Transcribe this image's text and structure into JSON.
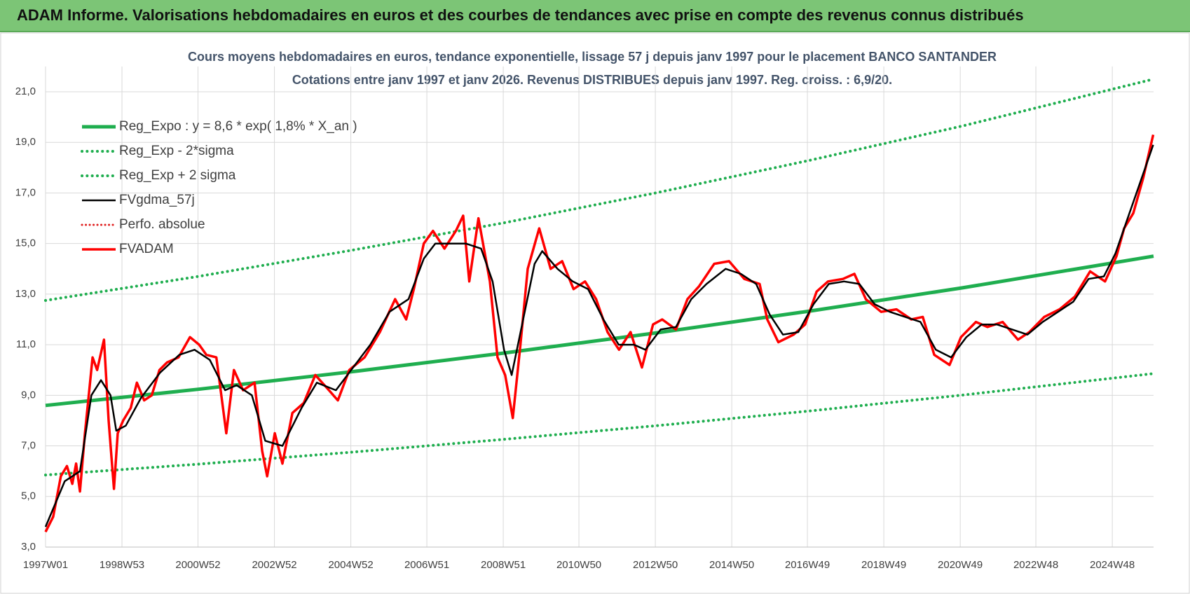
{
  "header": {
    "title": "ADAM Informe. Valorisations hebdomadaires en euros et des courbes de tendances avec prise en compte des revenus connus distribués"
  },
  "chart_data": {
    "type": "line",
    "title": "Cours moyens hebdomadaires en euros, tendance exponentielle, lissage 57 j depuis janv 1997  pour le placement BANCO SANTANDER",
    "subtitle": "Cotations entre janv 1997 et janv 2026. Revenus DISTRIBUES depuis janv 1997.  Reg. croiss. : 6,9/20.",
    "xlim": [
      1997,
      2026
    ],
    "xticks": [
      {
        "value": 1997,
        "label": "1997W01"
      },
      {
        "value": 1999,
        "label": "1998W53"
      },
      {
        "value": 2000.99,
        "label": "2000W52"
      },
      {
        "value": 2002.99,
        "label": "2002W52"
      },
      {
        "value": 2004.99,
        "label": "2004W52"
      },
      {
        "value": 2006.98,
        "label": "2006W51"
      },
      {
        "value": 2008.98,
        "label": "2008W51"
      },
      {
        "value": 2010.96,
        "label": "2010W50"
      },
      {
        "value": 2012.96,
        "label": "2012W50"
      },
      {
        "value": 2014.96,
        "label": "2014W50"
      },
      {
        "value": 2016.94,
        "label": "2016W49"
      },
      {
        "value": 2018.94,
        "label": "2018W49"
      },
      {
        "value": 2020.94,
        "label": "2020W49"
      },
      {
        "value": 2022.92,
        "label": "2022W48"
      },
      {
        "value": 2024.92,
        "label": "2024W48"
      }
    ],
    "ylim": [
      3,
      22
    ],
    "yticks": [
      {
        "value": 3,
        "label": "3,0"
      },
      {
        "value": 5,
        "label": "5,0"
      },
      {
        "value": 7,
        "label": "7,0"
      },
      {
        "value": 9,
        "label": "9,0"
      },
      {
        "value": 11,
        "label": "11,0"
      },
      {
        "value": 13,
        "label": "13,0"
      },
      {
        "value": 15,
        "label": "15,0"
      },
      {
        "value": 17,
        "label": "17,0"
      },
      {
        "value": 19,
        "label": "19,0"
      },
      {
        "value": 21,
        "label": "21,0"
      }
    ],
    "grid": true,
    "legend": "upper left",
    "series": [
      {
        "name": "Reg_Expo : y = 8,6 * exp( 1,8% *  X_an )",
        "color": "#1fae4f",
        "style": "solid",
        "width": 5,
        "x": [
          1997,
          2001,
          2005,
          2009,
          2013,
          2017,
          2021,
          2026
        ],
        "values": [
          8.6,
          9.24,
          9.93,
          10.67,
          11.47,
          12.33,
          13.25,
          14.5
        ]
      },
      {
        "name": "Reg_Exp - 2*sigma",
        "color": "#1fae4f",
        "style": "dotted",
        "width": 4,
        "x": [
          1997,
          2001,
          2005,
          2009,
          2013,
          2017,
          2021,
          2026
        ],
        "values": [
          5.85,
          6.28,
          6.75,
          7.26,
          7.8,
          8.38,
          9.01,
          9.86
        ]
      },
      {
        "name": "Reg_Exp + 2 sigma",
        "color": "#1fae4f",
        "style": "dotted",
        "width": 4,
        "x": [
          1997,
          2001,
          2005,
          2009,
          2013,
          2017,
          2021,
          2026
        ],
        "values": [
          12.75,
          13.7,
          14.73,
          15.82,
          17.01,
          18.29,
          19.65,
          21.5
        ]
      },
      {
        "name": "FVgdma_57j",
        "color": "#000000",
        "style": "solid",
        "width": 2.5,
        "x": [
          1997,
          1997.5,
          1997.9,
          1998.2,
          1998.45,
          1998.7,
          1998.85,
          1999.1,
          1999.5,
          2000,
          2000.5,
          2000.9,
          2001.3,
          2001.7,
          2002,
          2002.4,
          2002.75,
          2003.2,
          2003.7,
          2004.1,
          2004.6,
          2005,
          2005.5,
          2006,
          2006.5,
          2006.9,
          2007.2,
          2007.6,
          2008,
          2008.4,
          2008.7,
          2009,
          2009.2,
          2009.5,
          2009.8,
          2010,
          2010.4,
          2010.8,
          2011.2,
          2011.6,
          2012,
          2012.4,
          2012.7,
          2013.1,
          2013.5,
          2013.9,
          2014.3,
          2014.8,
          2015.2,
          2015.6,
          2015.95,
          2016.3,
          2016.7,
          2017.1,
          2017.5,
          2017.9,
          2018.3,
          2018.7,
          2019.1,
          2019.5,
          2019.9,
          2020.3,
          2020.7,
          2021.1,
          2021.5,
          2021.9,
          2022.3,
          2022.7,
          2023.1,
          2023.5,
          2023.9,
          2024.3,
          2024.7,
          2025,
          2025.3,
          2025.6,
          2025.99
        ],
        "values": [
          3.8,
          5.6,
          6.0,
          9.0,
          9.6,
          9.0,
          7.6,
          7.8,
          8.9,
          9.9,
          10.6,
          10.8,
          10.4,
          9.2,
          9.4,
          9.0,
          7.2,
          7.0,
          8.5,
          9.5,
          9.2,
          10.0,
          11.0,
          12.3,
          12.8,
          14.4,
          15.0,
          15.0,
          15.0,
          14.8,
          13.5,
          10.8,
          9.8,
          12.0,
          14.2,
          14.7,
          14.0,
          13.5,
          13.2,
          12.0,
          11.0,
          11.0,
          10.8,
          11.6,
          11.7,
          12.8,
          13.4,
          14.0,
          13.8,
          13.4,
          12.2,
          11.4,
          11.5,
          12.6,
          13.4,
          13.5,
          13.4,
          12.6,
          12.3,
          12.1,
          11.9,
          10.8,
          10.5,
          11.3,
          11.8,
          11.8,
          11.6,
          11.4,
          11.9,
          12.3,
          12.7,
          13.6,
          13.7,
          14.6,
          15.9,
          17.2,
          18.9
        ]
      },
      {
        "name": "Perfo. absolue",
        "color": "#e02020",
        "style": "dotted",
        "width": 3
      },
      {
        "name": "FVADAM",
        "color": "#ff0000",
        "style": "solid",
        "width": 3.5,
        "x": [
          1997,
          1997.2,
          1997.4,
          1997.56,
          1997.7,
          1997.8,
          1997.9,
          1998.03,
          1998.23,
          1998.35,
          1998.53,
          1998.65,
          1998.79,
          1998.89,
          1999.03,
          1999.23,
          1999.39,
          1999.58,
          1999.78,
          1999.98,
          2000.18,
          2000.48,
          2000.78,
          2001.02,
          2001.21,
          2001.47,
          2001.73,
          2001.93,
          2002.17,
          2002.47,
          2002.67,
          2002.8,
          2003,
          2003.2,
          2003.46,
          2003.76,
          2004.06,
          2004.36,
          2004.65,
          2004.95,
          2005.35,
          2005.75,
          2006.15,
          2006.44,
          2006.64,
          2006.9,
          2007.14,
          2007.44,
          2007.74,
          2007.93,
          2008.09,
          2008.33,
          2008.63,
          2008.83,
          2009.03,
          2009.23,
          2009.43,
          2009.62,
          2009.92,
          2010.22,
          2010.52,
          2010.82,
          2011.12,
          2011.41,
          2011.71,
          2012.01,
          2012.31,
          2012.61,
          2012.9,
          2013.14,
          2013.5,
          2013.8,
          2014.1,
          2014.5,
          2014.89,
          2015.29,
          2015.69,
          2015.89,
          2016.18,
          2016.58,
          2016.88,
          2017.18,
          2017.48,
          2017.87,
          2018.17,
          2018.47,
          2018.87,
          2019.27,
          2019.66,
          2019.96,
          2020.26,
          2020.66,
          2020.96,
          2021.35,
          2021.65,
          2022.05,
          2022.45,
          2022.75,
          2023.14,
          2023.54,
          2023.94,
          2024.34,
          2024.73,
          2025.03,
          2025.23,
          2025.47,
          2025.73,
          2025.99
        ],
        "values": [
          3.6,
          4.2,
          5.8,
          6.2,
          5.5,
          6.3,
          5.2,
          7.5,
          10.5,
          10.0,
          11.2,
          8.0,
          5.3,
          7.5,
          8.0,
          8.5,
          9.5,
          8.8,
          9.0,
          10.0,
          10.3,
          10.5,
          11.3,
          11.0,
          10.6,
          10.5,
          7.5,
          10.0,
          9.2,
          9.5,
          6.8,
          5.8,
          7.5,
          6.3,
          8.3,
          8.7,
          9.8,
          9.3,
          8.8,
          10.0,
          10.5,
          11.5,
          12.8,
          12.0,
          13.2,
          15.0,
          15.5,
          14.8,
          15.5,
          16.1,
          13.5,
          16.0,
          13.5,
          10.5,
          9.8,
          8.1,
          11.0,
          14.0,
          15.6,
          14.0,
          14.3,
          13.2,
          13.5,
          12.8,
          11.5,
          10.8,
          11.5,
          10.1,
          11.8,
          12.0,
          11.6,
          12.8,
          13.3,
          14.2,
          14.3,
          13.6,
          13.4,
          12.0,
          11.1,
          11.4,
          11.8,
          13.1,
          13.5,
          13.6,
          13.8,
          12.8,
          12.3,
          12.4,
          12.0,
          12.1,
          10.6,
          10.2,
          11.3,
          11.9,
          11.7,
          11.9,
          11.2,
          11.5,
          12.1,
          12.4,
          12.9,
          13.9,
          13.5,
          14.5,
          15.6,
          16.2,
          17.6,
          19.3
        ]
      }
    ]
  }
}
